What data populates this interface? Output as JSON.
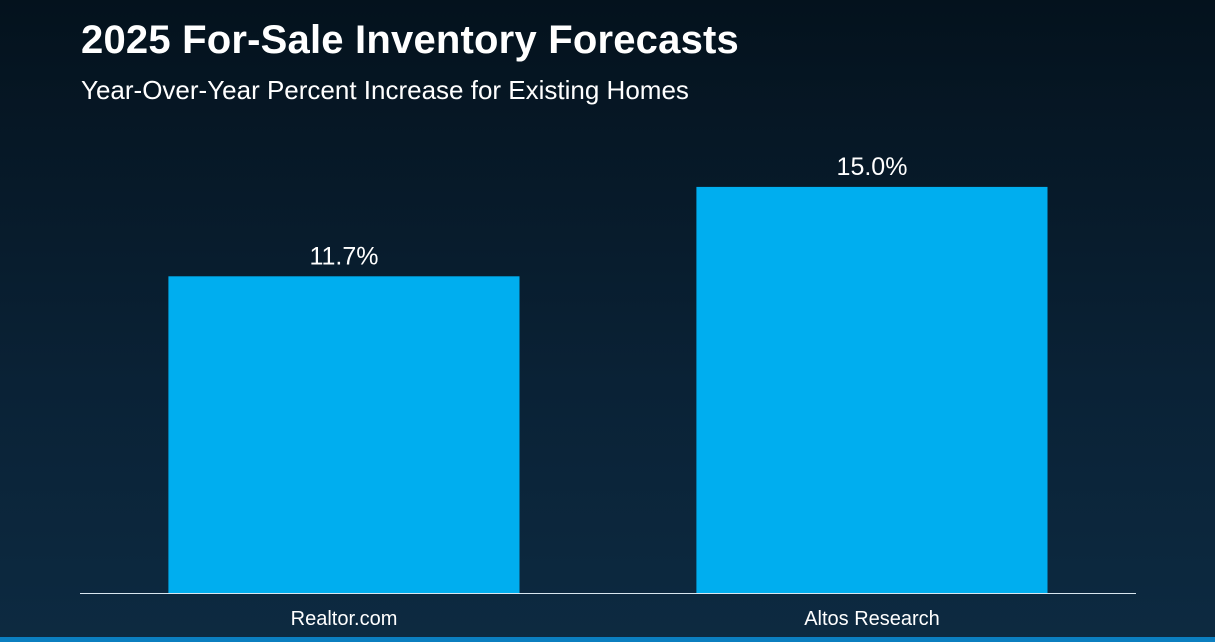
{
  "header": {
    "title": "2025 For-Sale Inventory Forecasts",
    "subtitle": "Year-Over-Year Percent Increase for Existing Homes"
  },
  "colors": {
    "bar": "#00aeef",
    "axis_line": "#d9e6ef",
    "text": "#ffffff"
  },
  "chart_data": {
    "type": "bar",
    "title": "2025 For-Sale Inventory Forecasts",
    "subtitle": "Year-Over-Year Percent Increase for Existing Homes",
    "categories": [
      "Realtor.com",
      "Altos Research"
    ],
    "values": [
      11.7,
      15.0
    ],
    "data_labels": [
      "11.7%",
      "15.0%"
    ],
    "unit": "%",
    "ylim": [
      0,
      15.7
    ],
    "grid": false,
    "legend": "none"
  }
}
